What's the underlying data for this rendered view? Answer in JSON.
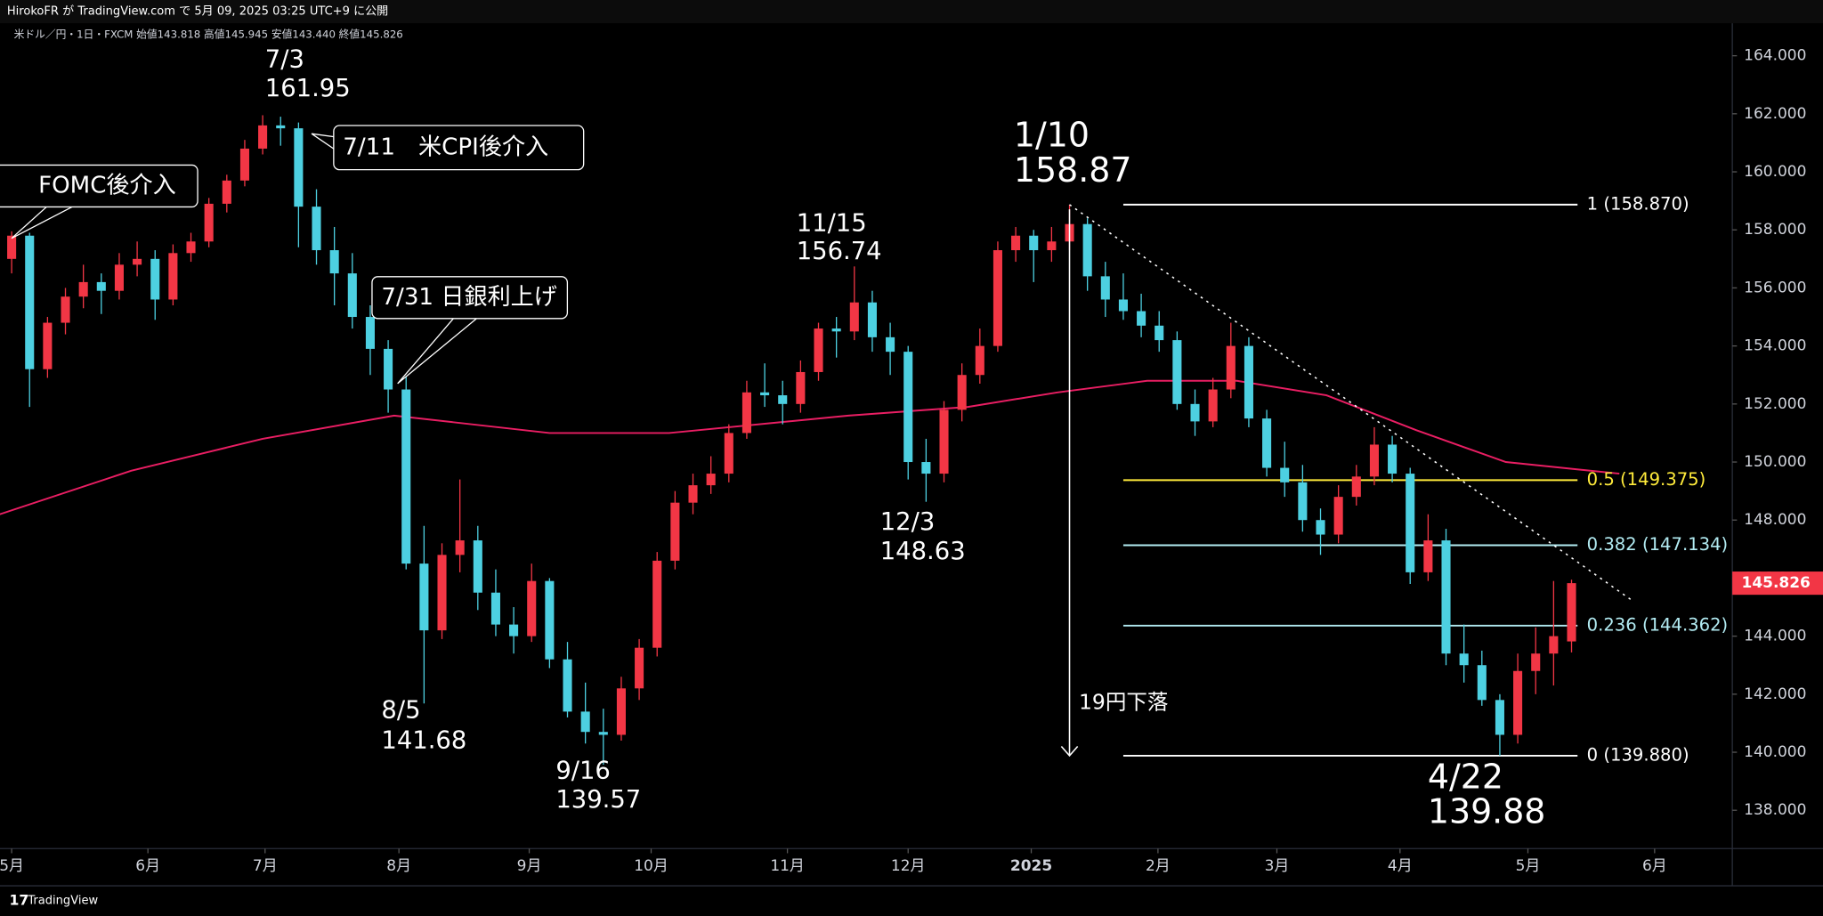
{
  "header": "HirokoFR が TradingView.com で 5月 09, 2025 03:25 UTC+9 に公開",
  "brand": "TradingView",
  "chart_data": {
    "type": "candlestick",
    "subtitle": "米ドル／円・1日・FXCM 始値143.818 高値145.945 安値143.440 終値145.826",
    "up_color": "#f23645",
    "down_color": "#4dd0e1",
    "x": [
      0,
      3,
      6,
      9,
      12,
      15,
      18,
      21,
      24,
      27,
      30,
      33,
      36,
      39,
      42,
      45,
      48,
      51,
      54,
      57,
      60,
      63,
      66,
      69,
      72,
      75,
      78,
      81,
      84,
      87,
      90,
      93,
      96,
      99,
      102,
      105,
      108,
      111,
      114,
      117,
      120,
      123,
      126,
      129,
      132,
      135,
      138,
      141,
      144,
      147,
      150,
      153,
      156,
      159,
      162,
      165,
      168,
      171,
      174,
      177,
      180,
      183,
      186,
      189,
      192,
      195,
      198,
      201,
      204,
      207,
      210,
      213,
      216,
      219,
      222,
      225,
      228,
      231,
      234,
      237,
      240,
      243,
      246,
      249,
      252,
      255,
      258,
      261
    ],
    "ohlc": [
      [
        157.0,
        157.95,
        156.5,
        157.8
      ],
      [
        157.8,
        157.9,
        151.9,
        153.2
      ],
      [
        153.2,
        155.0,
        152.9,
        154.8
      ],
      [
        154.8,
        156.0,
        154.4,
        155.7
      ],
      [
        155.7,
        156.8,
        155.3,
        156.2
      ],
      [
        156.2,
        156.5,
        155.1,
        155.9
      ],
      [
        155.9,
        157.2,
        155.6,
        156.8
      ],
      [
        156.8,
        157.6,
        156.4,
        157.0
      ],
      [
        157.0,
        157.3,
        154.9,
        155.6
      ],
      [
        155.6,
        157.5,
        155.4,
        157.2
      ],
      [
        157.2,
        157.9,
        156.9,
        157.6
      ],
      [
        157.6,
        159.1,
        157.4,
        158.9
      ],
      [
        158.9,
        159.9,
        158.6,
        159.7
      ],
      [
        159.7,
        161.1,
        159.5,
        160.8
      ],
      [
        160.8,
        161.95,
        160.6,
        161.6
      ],
      [
        161.6,
        161.9,
        160.9,
        161.5
      ],
      [
        161.5,
        161.7,
        157.4,
        158.8
      ],
      [
        158.8,
        159.4,
        156.8,
        157.3
      ],
      [
        157.3,
        158.1,
        155.4,
        156.5
      ],
      [
        156.5,
        157.2,
        154.6,
        155.0
      ],
      [
        155.0,
        155.4,
        153.0,
        153.9
      ],
      [
        153.9,
        154.2,
        151.7,
        152.5
      ],
      [
        152.5,
        153.0,
        146.3,
        146.5
      ],
      [
        146.5,
        147.8,
        141.68,
        144.2
      ],
      [
        144.2,
        147.2,
        143.9,
        146.8
      ],
      [
        146.8,
        149.4,
        146.2,
        147.3
      ],
      [
        147.3,
        147.8,
        144.9,
        145.5
      ],
      [
        145.5,
        146.3,
        144.0,
        144.4
      ],
      [
        144.4,
        145.0,
        143.4,
        144.0
      ],
      [
        144.0,
        146.5,
        143.8,
        145.9
      ],
      [
        145.9,
        146.0,
        142.9,
        143.2
      ],
      [
        143.2,
        143.8,
        141.2,
        141.4
      ],
      [
        141.4,
        142.4,
        140.3,
        140.7
      ],
      [
        140.7,
        141.5,
        139.57,
        140.6
      ],
      [
        140.6,
        142.6,
        140.4,
        142.2
      ],
      [
        142.2,
        143.9,
        141.8,
        143.6
      ],
      [
        143.6,
        146.9,
        143.3,
        146.6
      ],
      [
        146.6,
        149.0,
        146.3,
        148.6
      ],
      [
        148.6,
        149.6,
        148.2,
        149.2
      ],
      [
        149.2,
        150.2,
        148.9,
        149.6
      ],
      [
        149.6,
        151.3,
        149.3,
        151.0
      ],
      [
        151.0,
        152.8,
        150.8,
        152.4
      ],
      [
        152.4,
        153.4,
        151.9,
        152.3
      ],
      [
        152.3,
        152.8,
        151.3,
        152.0
      ],
      [
        152.0,
        153.5,
        151.7,
        153.1
      ],
      [
        153.1,
        154.8,
        152.8,
        154.6
      ],
      [
        154.6,
        155.0,
        153.6,
        154.5
      ],
      [
        154.5,
        156.74,
        154.2,
        155.5
      ],
      [
        155.5,
        155.9,
        153.8,
        154.3
      ],
      [
        154.3,
        154.8,
        153.0,
        153.8
      ],
      [
        153.8,
        154.0,
        149.4,
        150.0
      ],
      [
        150.0,
        150.8,
        148.63,
        149.6
      ],
      [
        149.6,
        152.1,
        149.3,
        151.8
      ],
      [
        151.8,
        153.4,
        151.4,
        153.0
      ],
      [
        153.0,
        154.6,
        152.7,
        154.0
      ],
      [
        154.0,
        157.6,
        153.8,
        157.3
      ],
      [
        157.3,
        158.1,
        156.9,
        157.8
      ],
      [
        157.8,
        158.0,
        156.2,
        157.3
      ],
      [
        157.3,
        158.1,
        156.9,
        157.6
      ],
      [
        157.6,
        158.87,
        157.3,
        158.2
      ],
      [
        158.2,
        158.4,
        155.9,
        156.4
      ],
      [
        156.4,
        156.9,
        155.0,
        155.6
      ],
      [
        155.6,
        156.5,
        154.9,
        155.2
      ],
      [
        155.2,
        155.8,
        154.3,
        154.7
      ],
      [
        154.7,
        155.2,
        153.8,
        154.2
      ],
      [
        154.2,
        154.5,
        151.8,
        152.0
      ],
      [
        152.0,
        152.5,
        150.9,
        151.4
      ],
      [
        151.4,
        152.9,
        151.2,
        152.5
      ],
      [
        152.5,
        154.8,
        152.2,
        154.0
      ],
      [
        154.0,
        154.3,
        151.2,
        151.5
      ],
      [
        151.5,
        151.8,
        149.5,
        149.8
      ],
      [
        149.8,
        150.7,
        148.8,
        149.3
      ],
      [
        149.3,
        149.9,
        147.6,
        148.0
      ],
      [
        148.0,
        148.4,
        146.8,
        147.5
      ],
      [
        147.5,
        149.2,
        147.2,
        148.8
      ],
      [
        148.8,
        149.9,
        148.5,
        149.5
      ],
      [
        149.5,
        151.2,
        149.2,
        150.6
      ],
      [
        150.6,
        150.9,
        149.3,
        149.6
      ],
      [
        149.6,
        149.8,
        145.8,
        146.2
      ],
      [
        146.2,
        148.2,
        145.9,
        147.3
      ],
      [
        147.3,
        147.7,
        143.0,
        143.4
      ],
      [
        143.4,
        144.4,
        142.4,
        143.0
      ],
      [
        143.0,
        143.5,
        141.6,
        141.8
      ],
      [
        141.8,
        142.0,
        139.88,
        140.6
      ],
      [
        140.6,
        143.4,
        140.3,
        142.8
      ],
      [
        142.8,
        144.3,
        142.0,
        143.4
      ],
      [
        143.4,
        145.9,
        142.3,
        144.0
      ],
      [
        143.818,
        145.945,
        143.44,
        145.826
      ]
    ],
    "ma": {
      "color": "#e91e63",
      "x": [
        -2,
        20,
        42,
        64,
        90,
        110,
        140,
        160,
        175,
        190,
        205,
        220,
        235,
        250,
        269
      ],
      "values": [
        148.2,
        149.7,
        150.8,
        151.6,
        151.0,
        151.0,
        151.6,
        151.9,
        152.4,
        152.8,
        152.8,
        152.3,
        151.1,
        150.0,
        149.6
      ]
    },
    "trendline": {
      "x": [
        177,
        271
      ],
      "values": [
        158.87,
        145.25
      ]
    },
    "fib": {
      "x": [
        186,
        262
      ],
      "levels": [
        {
          "value": 158.87,
          "label": "1 (158.870)",
          "color": "#ffffff"
        },
        {
          "value": 149.375,
          "label": "0.5 (149.375)",
          "color": "#ffeb3b"
        },
        {
          "value": 147.134,
          "label": "0.382 (147.134)",
          "color": "#b2ebf2"
        },
        {
          "value": 144.362,
          "label": "0.236 (144.362)",
          "color": "#b2ebf2"
        },
        {
          "value": 139.88,
          "label": "0 (139.880)",
          "color": "#ffffff"
        }
      ]
    },
    "arrow_label": "19円下落",
    "annotations": [
      [
        "7/3",
        "161.95"
      ],
      [
        "1/10",
        "158.87"
      ],
      [
        "11/15",
        "156.74"
      ],
      [
        "12/3",
        "148.63"
      ],
      [
        "8/5",
        "141.68"
      ],
      [
        "9/16",
        "139.57"
      ],
      [
        "4/22",
        "139.88"
      ]
    ],
    "callouts": [
      "FOMC後介入",
      "7/11　米CPI後介入",
      "7/31 日銀利上げ"
    ],
    "xlim": [
      -1.95,
      287.9
    ],
    "xticks": [
      {
        "value": 0,
        "label": "5月"
      },
      {
        "value": 22.8,
        "label": "6月"
      },
      {
        "value": 42.4,
        "label": "7月"
      },
      {
        "value": 64.8,
        "label": "8月"
      },
      {
        "value": 86.6,
        "label": "9月"
      },
      {
        "value": 107,
        "label": "10月"
      },
      {
        "value": 129.8,
        "label": "11月"
      },
      {
        "value": 150,
        "label": "12月"
      },
      {
        "value": 170.6,
        "label": "2025"
      },
      {
        "value": 191.8,
        "label": "2月"
      },
      {
        "value": 211.7,
        "label": "3月"
      },
      {
        "value": 232.3,
        "label": "4月"
      },
      {
        "value": 253.7,
        "label": "5月"
      },
      {
        "value": 274.9,
        "label": "6月"
      }
    ],
    "ylim": [
      136.68,
      165.12
    ],
    "yticks": [
      {
        "value": 138,
        "label": "138.000"
      },
      {
        "value": 140,
        "label": "140.000"
      },
      {
        "value": 142,
        "label": "142.000"
      },
      {
        "value": 144,
        "label": "144.000"
      },
      {
        "value": 146,
        "label": "146.000"
      },
      {
        "value": 148,
        "label": "148.000"
      },
      {
        "value": 150,
        "label": "150.000"
      },
      {
        "value": 152,
        "label": "152.000"
      },
      {
        "value": 154,
        "label": "154.000"
      },
      {
        "value": 156,
        "label": "156.000"
      },
      {
        "value": 158,
        "label": "158.000"
      },
      {
        "value": 160,
        "label": "160.000"
      },
      {
        "value": 162,
        "label": "162.000"
      },
      {
        "value": 164,
        "label": "164.000"
      }
    ]
  }
}
